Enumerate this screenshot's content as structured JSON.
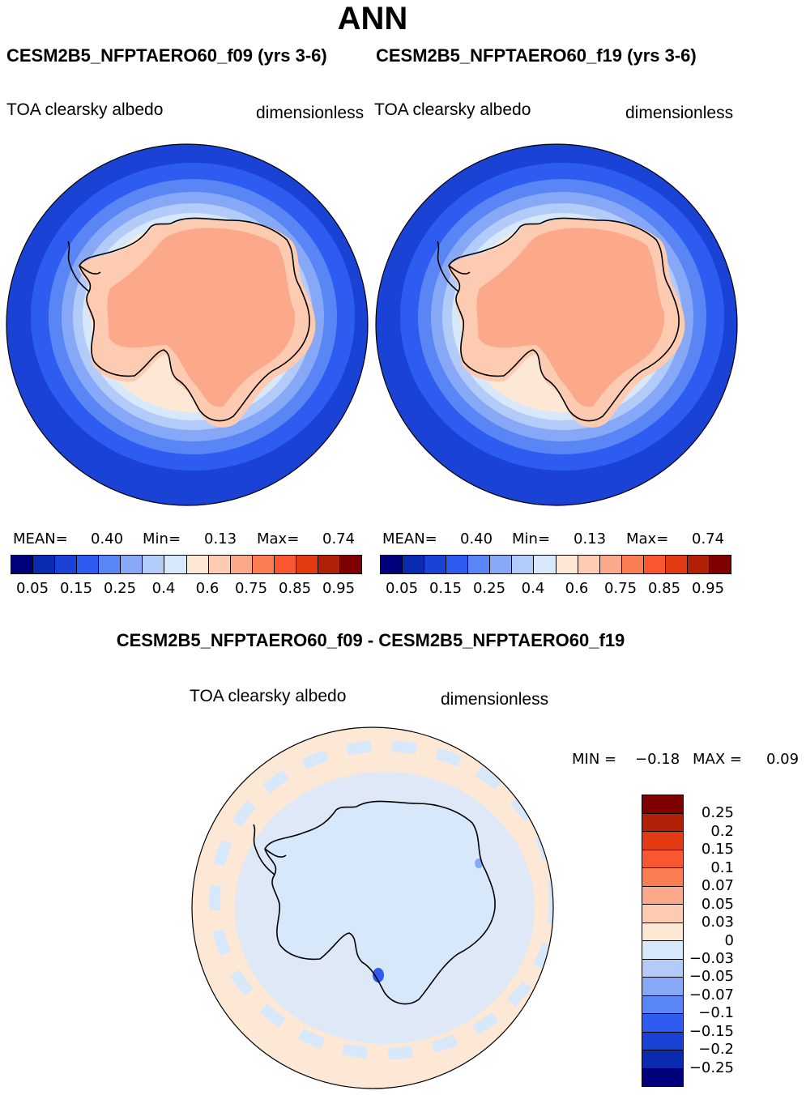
{
  "header": {
    "season": "ANN"
  },
  "panels": [
    {
      "case": "CESM2B5_NFPTAERO60_f09 (yrs 3-6)",
      "variable": "TOA clearsky albedo",
      "units": "dimensionless",
      "stats": {
        "mean_label": "MEAN=",
        "mean": "0.40",
        "min_label": "Min=",
        "min": "0.13",
        "max_label": "Max=",
        "max": "0.74"
      }
    },
    {
      "case": "CESM2B5_NFPTAERO60_f19 (yrs 3-6)",
      "variable": "TOA clearsky albedo",
      "units": "dimensionless",
      "stats": {
        "mean_label": "MEAN=",
        "mean": "0.40",
        "min_label": "Min=",
        "min": "0.13",
        "max_label": "Max=",
        "max": "0.74"
      }
    }
  ],
  "colorbar_abs": {
    "colors": [
      "#00007d",
      "#0a2ab0",
      "#1a43d6",
      "#2e5cf0",
      "#5a86f5",
      "#86a8f7",
      "#b2cbf9",
      "#d8e8fb",
      "#fde8d6",
      "#fdcbb2",
      "#fca98b",
      "#fb7e52",
      "#f9572f",
      "#e23b14",
      "#b12007",
      "#7e0000"
    ],
    "ticks": [
      "0.05",
      "0.15",
      "0.25",
      "0.4",
      "0.6",
      "0.75",
      "0.85",
      "0.95"
    ]
  },
  "difference": {
    "title": "CESM2B5_NFPTAERO60_f09 - CESM2B5_NFPTAERO60_f19",
    "variable": "TOA clearsky albedo",
    "units": "dimensionless",
    "min_label": "MIN =",
    "min": "−0.18",
    "max_label": "MAX =",
    "max": "0.09",
    "colorbar": {
      "colors": [
        "#7e0000",
        "#b12007",
        "#e23b14",
        "#f9572f",
        "#fb7e52",
        "#fca98b",
        "#fdcbb2",
        "#fde8d6",
        "#d8e8fb",
        "#b2cbf9",
        "#86a8f7",
        "#5a86f5",
        "#2e5cf0",
        "#1a43d6",
        "#0a2ab0",
        "#00007d"
      ],
      "ticks": [
        "0.25",
        "0.2",
        "0.15",
        "0.1",
        "0.07",
        "0.05",
        "0.03",
        "0",
        "−0.03",
        "−0.05",
        "−0.07",
        "−0.1",
        "−0.15",
        "−0.2",
        "−0.25"
      ]
    }
  },
  "map_colors": {
    "ocean_far": "#1a43d6",
    "ring1": "#2e5cf0",
    "ring2": "#5a86f5",
    "ring3": "#86a8f7",
    "ring4": "#b2cbf9",
    "ring5": "#d8e8fb",
    "ice_edge": "#fde8d6",
    "ice_mid": "#fdcbb2",
    "ice_core": "#fca98b",
    "diff_bg": "#fde8d6",
    "diff_land": "#d8e8fb",
    "diff_neg": "#2e5cf0"
  }
}
